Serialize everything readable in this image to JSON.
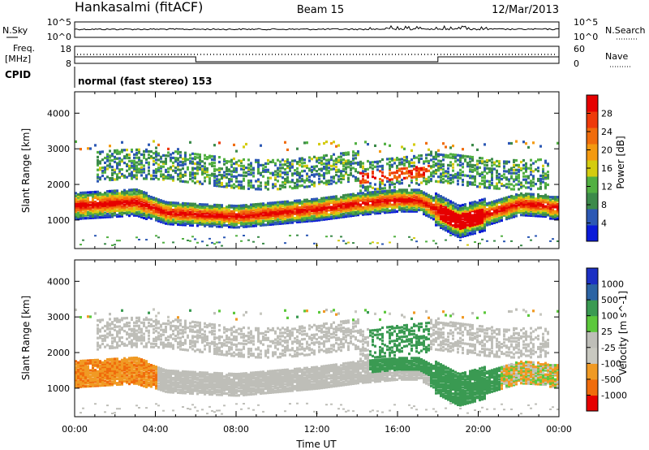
{
  "header": {
    "station": "Hankasalmi (fitACF)",
    "beam": "Beam 15",
    "date": "12/Mar/2013"
  },
  "top_panels": {
    "nsky_label": "N.Sky",
    "nsky_ticks": [
      "10^5",
      "10^0"
    ],
    "nsearch_label": "N.Search",
    "nsearch_ticks": [
      "10^5",
      "10^0"
    ],
    "freq_label_1": "Freq.",
    "freq_label_2": "[MHz]",
    "freq_ticks": [
      "18",
      "8"
    ],
    "nave_label": "Nave",
    "nave_ticks": [
      "60",
      "0"
    ],
    "cpid_label": "CPID",
    "cpid_text": "normal (fast stereo) 153"
  },
  "colors": {
    "power_scale": [
      "#0a1ad8",
      "#2c58b4",
      "#3c8a4a",
      "#52b042",
      "#d4cc10",
      "#f49a10",
      "#f06c0c",
      "#ee3a0a",
      "#e60000"
    ],
    "velocity_scale": [
      "#e60000",
      "#f06c0c",
      "#f09a24",
      "#c8c8c0",
      "#bebeb8",
      "#5cc83c",
      "#3a9a52",
      "#2c64a4",
      "#1c30c4"
    ]
  },
  "chart_data": [
    {
      "type": "heatmap",
      "name": "power",
      "xlabel": "",
      "ylabel": "Slant Range [km]",
      "x_ticks": [
        "00:00",
        "04:00",
        "08:00",
        "12:00",
        "16:00",
        "20:00",
        "00:00"
      ],
      "y_ticks": [
        "4000",
        "3000",
        "2000",
        "1000"
      ],
      "ylim": [
        200,
        4600
      ],
      "colorbar": {
        "label": "Power [dB]",
        "ticks": [
          "28",
          "24",
          "20",
          "16",
          "12",
          "8",
          "4"
        ]
      }
    },
    {
      "type": "heatmap",
      "name": "velocity",
      "xlabel": "Time UT",
      "ylabel": "Slant Range [km]",
      "x_ticks": [
        "00:00",
        "04:00",
        "08:00",
        "12:00",
        "16:00",
        "20:00",
        "00:00"
      ],
      "y_ticks": [
        "4000",
        "3000",
        "2000",
        "1000"
      ],
      "ylim": [
        200,
        4600
      ],
      "colorbar": {
        "label": "Velocity [m s^-1]",
        "ticks": [
          "1000",
          "500",
          "100",
          "25",
          "-25",
          "-100",
          "-500",
          "-1000"
        ]
      }
    }
  ]
}
